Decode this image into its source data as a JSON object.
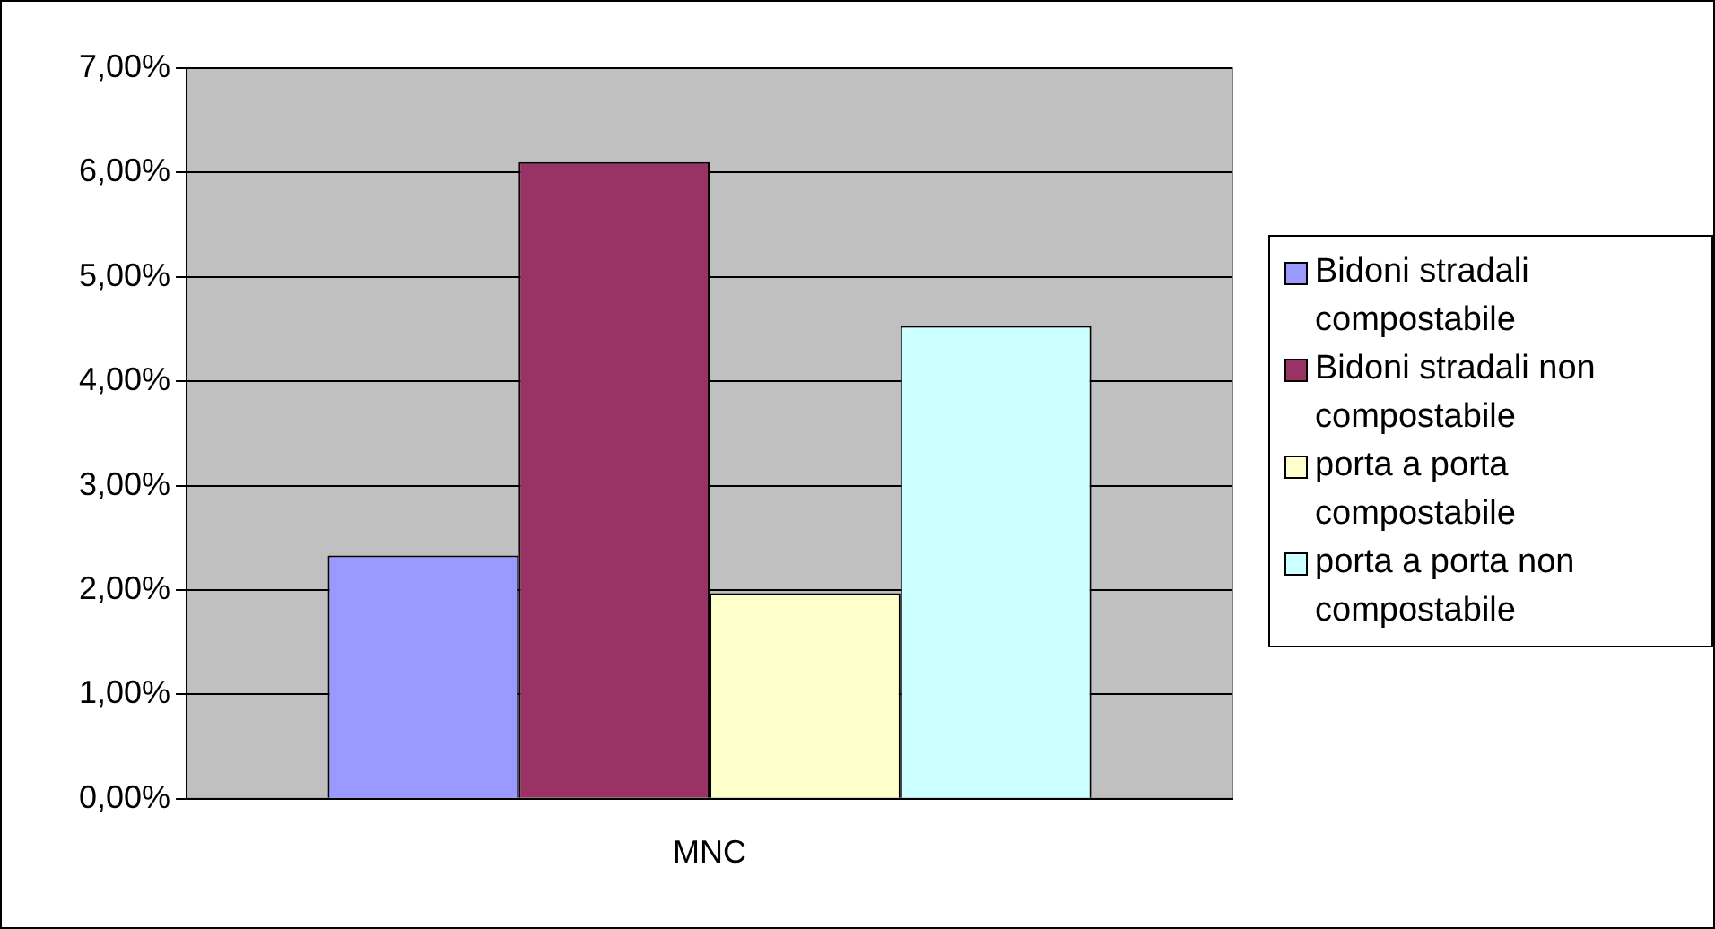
{
  "chart_data": {
    "type": "bar",
    "categories": [
      "MNC"
    ],
    "series": [
      {
        "name": "Bidoni stradali compostabile",
        "color": "#9999ff",
        "values": [
          2.33
        ]
      },
      {
        "name": "Bidoni stradali non compostabile",
        "color": "#993366",
        "values": [
          6.1
        ]
      },
      {
        "name": "porta a porta compostabile",
        "color": "#ffffcc",
        "values": [
          1.97
        ]
      },
      {
        "name": "porta a porta non compostabile",
        "color": "#ccffff",
        "values": [
          4.53
        ]
      }
    ],
    "ylim": [
      0,
      7
    ],
    "yticks": [
      {
        "value": 0,
        "label": "0,00%"
      },
      {
        "value": 1,
        "label": "1,00%"
      },
      {
        "value": 2,
        "label": "2,00%"
      },
      {
        "value": 3,
        "label": "3,00%"
      },
      {
        "value": 4,
        "label": "4,00%"
      },
      {
        "value": 5,
        "label": "5,00%"
      },
      {
        "value": 6,
        "label": "6,00%"
      },
      {
        "value": 7,
        "label": "7,00%"
      }
    ],
    "grid": "y",
    "legend": "right"
  }
}
